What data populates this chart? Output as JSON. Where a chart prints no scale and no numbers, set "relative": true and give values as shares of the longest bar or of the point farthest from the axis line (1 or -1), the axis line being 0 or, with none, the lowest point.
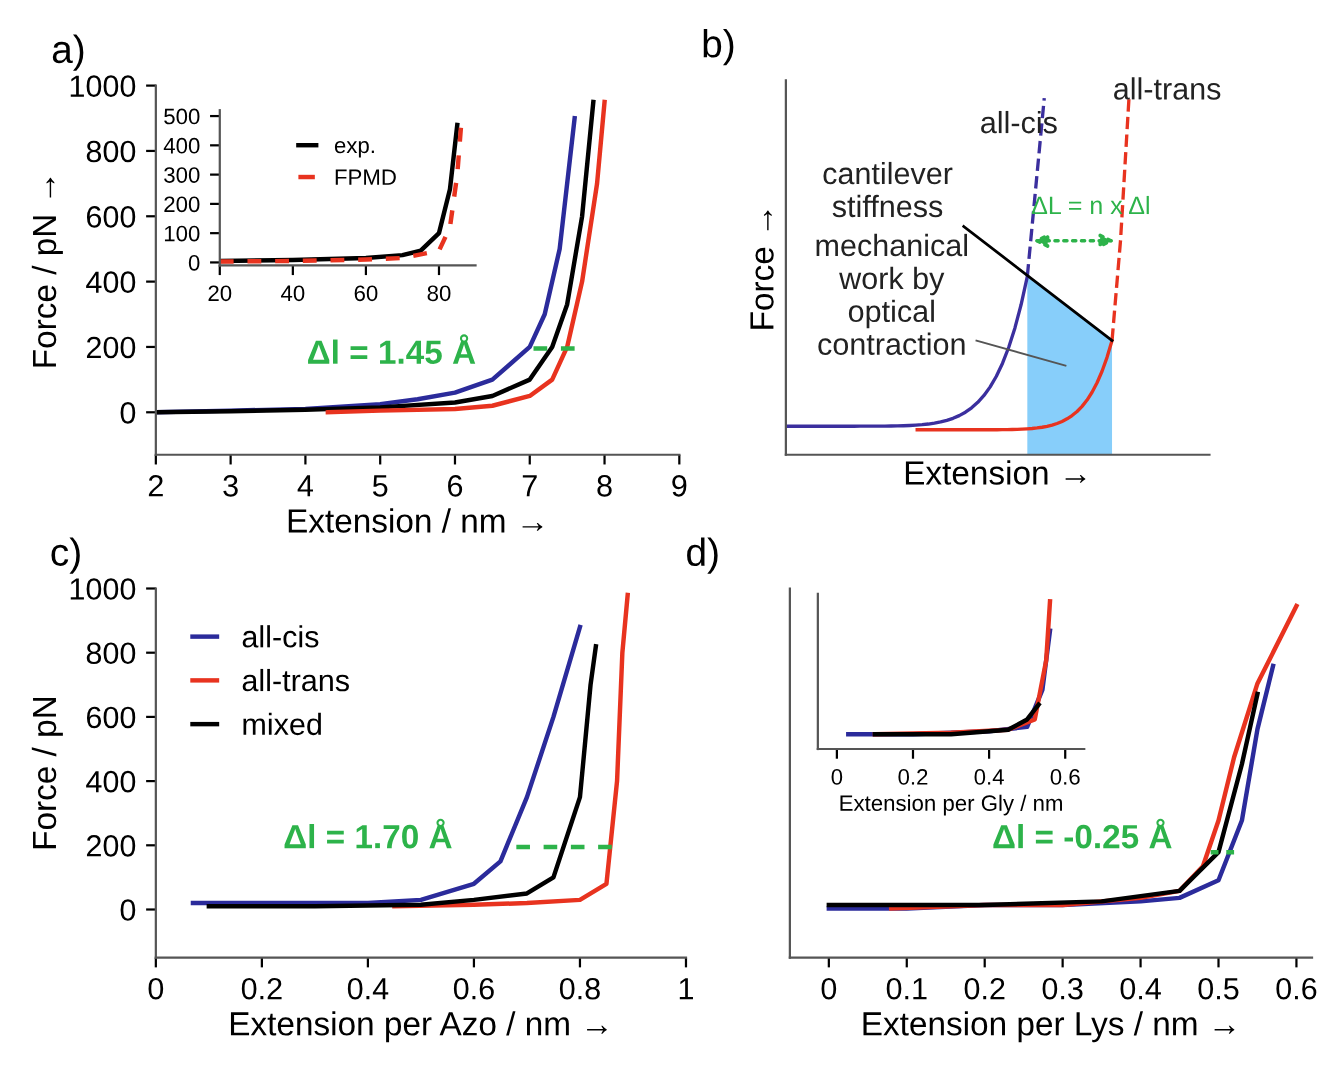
{
  "chart_data": [
    {
      "type": "line",
      "title": "a)",
      "xlabel": "Extension / nm →",
      "ylabel": "Force / pN →",
      "xlim": [
        2,
        9
      ],
      "xticks": [
        2,
        3,
        4,
        5,
        6,
        7,
        8,
        9
      ],
      "ylim": [
        -130,
        1000
      ],
      "yticks": [
        0,
        200,
        400,
        600,
        800,
        1000
      ],
      "annotations": [
        "Δl = 1.45 Å"
      ],
      "legend": false,
      "series": [
        {
          "color": "#2b2b9b",
          "x": [
            2,
            3,
            4,
            5,
            5.5,
            6,
            6.5,
            7,
            7.2,
            7.4,
            7.6
          ],
          "values": [
            0,
            5,
            10,
            25,
            40,
            60,
            100,
            200,
            300,
            500,
            900
          ]
        },
        {
          "color": "#000000",
          "x": [
            2,
            3,
            4,
            5,
            6,
            6.5,
            7,
            7.3,
            7.5,
            7.7,
            7.85
          ],
          "values": [
            0,
            3,
            8,
            15,
            30,
            50,
            100,
            200,
            330,
            600,
            950
          ]
        },
        {
          "color": "#e8331f",
          "x": [
            4.3,
            5,
            6,
            6.5,
            7,
            7.3,
            7.5,
            7.7,
            7.9,
            8.0
          ],
          "values": [
            0,
            5,
            10,
            20,
            50,
            100,
            200,
            400,
            700,
            950
          ]
        },
        {
          "color": "#2db34a",
          "x": [
            7.05,
            7.6
          ],
          "values": [
            195,
            195
          ],
          "line_style": "dashed"
        }
      ]
    },
    {
      "type": "line",
      "xlim": [
        20,
        90
      ],
      "xticks": [
        20,
        40,
        60,
        80
      ],
      "ylim": [
        -10,
        520
      ],
      "yticks": [
        0,
        100,
        200,
        300,
        400,
        500
      ],
      "legend": "top",
      "series": [
        {
          "name": "exp.",
          "color": "#000000",
          "x": [
            20,
            40,
            60,
            70,
            75,
            80,
            83,
            85
          ],
          "values": [
            5,
            8,
            15,
            25,
            40,
            100,
            250,
            470
          ]
        },
        {
          "name": "FPMD",
          "color": "#e8331f",
          "line_style": "dashed",
          "x": [
            20,
            40,
            60,
            70,
            80,
            83,
            85,
            86
          ],
          "values": [
            3,
            5,
            10,
            15,
            40,
            120,
            300,
            460
          ]
        }
      ]
    },
    {
      "type": "other",
      "title": "b)",
      "xlabel": "Extension →",
      "ylabel": "Force →",
      "annotations": [
        "all-cis",
        "all-trans",
        "cantilever\nstiffness",
        "mechanical\nwork by\noptical\ncontraction",
        "ΔL = n x Δl"
      ]
    },
    {
      "type": "line",
      "title": "c)",
      "xlabel": "Extension per Azo / nm →",
      "ylabel": "Force / pN",
      "xlim": [
        0,
        1
      ],
      "xticks": [
        0,
        0.2,
        0.4,
        0.6,
        0.8,
        1
      ],
      "ylim": [
        -150,
        1000
      ],
      "yticks": [
        0,
        200,
        400,
        600,
        800,
        1000
      ],
      "annotations": [
        "Δl = 1.70 Å"
      ],
      "legend": "top left",
      "series": [
        {
          "name": "all-cis",
          "color": "#2b2b9b",
          "x": [
            0.07,
            0.2,
            0.4,
            0.5,
            0.6,
            0.65,
            0.7,
            0.75,
            0.8
          ],
          "values": [
            20,
            20,
            20,
            30,
            80,
            150,
            350,
            600,
            880
          ]
        },
        {
          "name": "all-trans",
          "color": "#e8331f",
          "x": [
            0.45,
            0.6,
            0.7,
            0.8,
            0.85,
            0.87,
            0.88,
            0.89
          ],
          "values": [
            10,
            15,
            20,
            30,
            80,
            400,
            800,
            980
          ]
        },
        {
          "name": "mixed",
          "color": "#000000",
          "x": [
            0.1,
            0.3,
            0.5,
            0.6,
            0.7,
            0.75,
            0.8,
            0.82,
            0.83
          ],
          "values": [
            10,
            10,
            15,
            30,
            50,
            100,
            350,
            700,
            820
          ]
        },
        {
          "color": "#2db34a",
          "line_style": "dashed",
          "x": [
            0.68,
            0.86
          ],
          "values": [
            195,
            195
          ]
        }
      ]
    },
    {
      "type": "line",
      "title": "d)",
      "xlabel": "Extension per Lys / nm →",
      "xlim": [
        -0.05,
        0.62
      ],
      "xticks": [
        0,
        0.1,
        0.2,
        0.3,
        0.4,
        0.5,
        0.6
      ],
      "relative": true,
      "tick_labels": "x",
      "annotations": [
        "Δl = -0.25 Å"
      ],
      "series": [
        {
          "color": "#2b2b9b",
          "x": [
            0,
            0.1,
            0.2,
            0.3,
            0.4,
            0.45,
            0.5,
            0.53,
            0.55,
            0.57
          ],
          "values": [
            0.14,
            0.14,
            0.15,
            0.15,
            0.16,
            0.17,
            0.22,
            0.39,
            0.65,
            0.83
          ]
        },
        {
          "color": "#e8331f",
          "x": [
            0.08,
            0.2,
            0.3,
            0.4,
            0.45,
            0.48,
            0.5,
            0.52,
            0.55,
            0.6
          ],
          "values": [
            0.14,
            0.15,
            0.15,
            0.17,
            0.19,
            0.26,
            0.39,
            0.57,
            0.78,
            1.0
          ]
        },
        {
          "color": "#000000",
          "x": [
            0,
            0.1,
            0.2,
            0.35,
            0.45,
            0.5,
            0.53,
            0.55
          ],
          "values": [
            0.15,
            0.15,
            0.15,
            0.16,
            0.19,
            0.3,
            0.55,
            0.75
          ]
        },
        {
          "color": "#2db34a",
          "line_style": "dashed",
          "x": [
            0.49,
            0.52
          ],
          "values": [
            0.3,
            0.3
          ]
        }
      ]
    },
    {
      "type": "line",
      "xlabel": "Extension per Gly / nm",
      "xlim": [
        -0.05,
        0.65
      ],
      "xticks": [
        0,
        0.2,
        0.4,
        0.6
      ],
      "relative": true,
      "tick_labels": "x",
      "series": [
        {
          "color": "#2b2b9b",
          "x": [
            0.03,
            0.2,
            0.4,
            0.5,
            0.54,
            0.56
          ],
          "values": [
            0.1,
            0.1,
            0.12,
            0.15,
            0.4,
            0.8
          ]
        },
        {
          "color": "#e8331f",
          "x": [
            0.1,
            0.3,
            0.45,
            0.52,
            0.55,
            0.56
          ],
          "values": [
            0.1,
            0.11,
            0.13,
            0.2,
            0.6,
            1.0
          ]
        },
        {
          "color": "#000000",
          "x": [
            0.1,
            0.3,
            0.45,
            0.5,
            0.53
          ],
          "values": [
            0.1,
            0.1,
            0.13,
            0.2,
            0.3
          ]
        }
      ]
    }
  ]
}
